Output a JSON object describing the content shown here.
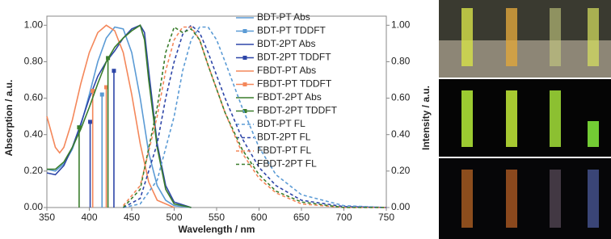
{
  "chart_data": {
    "type": "line",
    "x_label": "Wavelength / nm",
    "y_label": "Absorption / a.u.",
    "y2_label": "Intensity / a.u.",
    "xlim": [
      350,
      750
    ],
    "xticks": [
      350,
      400,
      450,
      500,
      550,
      600,
      650,
      700,
      750
    ],
    "ylim": [
      0,
      1.05
    ],
    "yticks": [
      {
        "value": 0,
        "label": "0.00"
      },
      {
        "value": 0.2,
        "label": "0.20"
      },
      {
        "value": 0.4,
        "label": "0.40"
      },
      {
        "value": 0.6,
        "label": "0.60"
      },
      {
        "value": 0.8,
        "label": "0.80"
      },
      {
        "value": 1,
        "label": "1.00"
      }
    ],
    "y2lim": [
      0,
      1.05
    ],
    "y2ticks": [
      {
        "value": 0,
        "label": "0.00"
      },
      {
        "value": 0.2,
        "label": "0.20"
      },
      {
        "value": 0.4,
        "label": "0.40"
      },
      {
        "value": 0.6,
        "label": "0.60"
      },
      {
        "value": 0.8,
        "label": "0.80"
      },
      {
        "value": 1,
        "label": "1.00"
      }
    ],
    "legend": "upper right",
    "series": [
      {
        "name": "BDT-PT Abs",
        "color": "#5b9bd5",
        "kind": "line",
        "style": "solid",
        "x": [
          350,
          360,
          370,
          380,
          390,
          400,
          410,
          420,
          430,
          440,
          450,
          460,
          470,
          480,
          490,
          500,
          520
        ],
        "values": [
          0.21,
          0.2,
          0.24,
          0.32,
          0.45,
          0.62,
          0.8,
          0.93,
          0.99,
          0.98,
          0.85,
          0.6,
          0.3,
          0.12,
          0.04,
          0.01,
          0
        ]
      },
      {
        "name": "BDT-PT TDDFT",
        "color": "#5b9bd5",
        "kind": "stem",
        "x": [
          415
        ],
        "values": [
          0.62
        ]
      },
      {
        "name": "BDT-2PT Abs",
        "color": "#2e46a8",
        "kind": "line",
        "style": "solid",
        "x": [
          350,
          360,
          370,
          380,
          390,
          400,
          410,
          420,
          430,
          440,
          450,
          460,
          465,
          470,
          480,
          490,
          500,
          520
        ],
        "values": [
          0.19,
          0.18,
          0.23,
          0.33,
          0.46,
          0.6,
          0.72,
          0.8,
          0.86,
          0.93,
          0.98,
          1.0,
          0.96,
          0.75,
          0.35,
          0.12,
          0.03,
          0
        ]
      },
      {
        "name": "BDT-2PT TDDFT",
        "color": "#2e46a8",
        "kind": "stem",
        "x": [
          401,
          429
        ],
        "values": [
          0.47,
          0.75
        ]
      },
      {
        "name": "FBDT-PT Abs",
        "color": "#f4875a",
        "kind": "line",
        "style": "solid",
        "x": [
          350,
          360,
          365,
          370,
          380,
          390,
          400,
          410,
          420,
          430,
          440,
          450,
          460,
          470,
          480,
          500
        ],
        "values": [
          0.5,
          0.33,
          0.3,
          0.33,
          0.48,
          0.68,
          0.85,
          0.96,
          1.0,
          0.97,
          0.85,
          0.62,
          0.35,
          0.14,
          0.04,
          0
        ]
      },
      {
        "name": "FBDT-PT TDDFT",
        "color": "#f4875a",
        "kind": "stem",
        "x": [
          404,
          420
        ],
        "values": [
          0.64,
          0.66
        ]
      },
      {
        "name": "FBDT-2PT Abs",
        "color": "#3a7d2c",
        "kind": "line",
        "style": "solid",
        "x": [
          350,
          360,
          370,
          380,
          390,
          400,
          410,
          420,
          430,
          440,
          450,
          460,
          465,
          470,
          480,
          490,
          500,
          520
        ],
        "values": [
          0.21,
          0.21,
          0.25,
          0.33,
          0.43,
          0.55,
          0.68,
          0.8,
          0.88,
          0.93,
          0.97,
          1.0,
          0.92,
          0.7,
          0.33,
          0.1,
          0.02,
          0
        ]
      },
      {
        "name": "FBDT-2PT TDDFT",
        "color": "#3a7d2c",
        "kind": "stem",
        "x": [
          388,
          422
        ],
        "values": [
          0.44,
          0.82
        ]
      },
      {
        "name": "BDT-PT FL",
        "color": "#5b9bd5",
        "kind": "line",
        "style": "dashed",
        "axis": "y2",
        "x": [
          440,
          460,
          480,
          500,
          510,
          520,
          530,
          540,
          550,
          560,
          580,
          600,
          620,
          650,
          700,
          750
        ],
        "values": [
          0,
          0.02,
          0.15,
          0.5,
          0.75,
          0.92,
          0.99,
          0.99,
          0.92,
          0.8,
          0.55,
          0.33,
          0.18,
          0.07,
          0.01,
          0
        ]
      },
      {
        "name": "BDT-2PT FL",
        "color": "#2e46a8",
        "kind": "line",
        "style": "dashed",
        "axis": "y2",
        "x": [
          440,
          460,
          480,
          490,
          500,
          510,
          520,
          530,
          540,
          560,
          580,
          600,
          620,
          650,
          700,
          750
        ],
        "values": [
          0,
          0.05,
          0.35,
          0.6,
          0.8,
          0.95,
          1.0,
          0.96,
          0.85,
          0.6,
          0.38,
          0.22,
          0.12,
          0.04,
          0.005,
          0
        ]
      },
      {
        "name": "FBDT-PT FL",
        "color": "#f4875a",
        "kind": "line",
        "style": "dashed",
        "axis": "y2",
        "x": [
          440,
          460,
          480,
          490,
          500,
          510,
          520,
          530,
          540,
          560,
          580,
          600,
          620,
          650,
          700,
          750
        ],
        "values": [
          0.01,
          0.12,
          0.5,
          0.75,
          0.92,
          0.99,
          0.99,
          0.92,
          0.78,
          0.52,
          0.3,
          0.16,
          0.08,
          0.02,
          0,
          0
        ]
      },
      {
        "name": "FBDT-2PT FL",
        "color": "#3a7d2c",
        "kind": "line",
        "style": "dashed",
        "axis": "y2",
        "x": [
          440,
          460,
          480,
          490,
          500,
          510,
          520,
          530,
          540,
          560,
          580,
          600,
          620,
          650,
          700,
          750
        ],
        "values": [
          0,
          0.1,
          0.55,
          0.85,
          0.99,
          0.96,
          0.98,
          0.92,
          0.78,
          0.52,
          0.32,
          0.18,
          0.09,
          0.03,
          0,
          0
        ]
      }
    ]
  }
}
